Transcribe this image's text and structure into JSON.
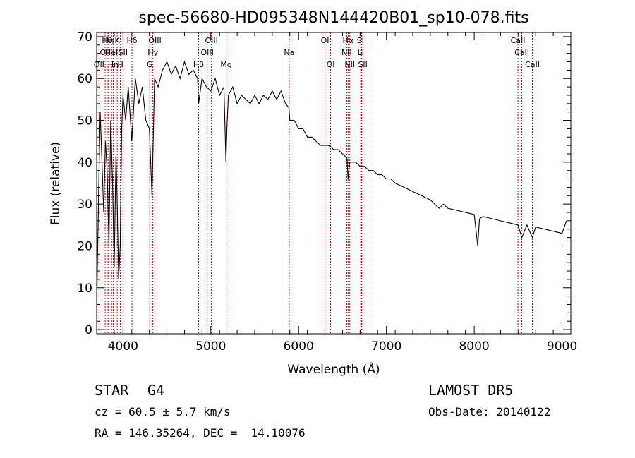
{
  "chart_data": {
    "type": "line",
    "title": "spec-56680-HD095348N144420B01_sp10-078.fits",
    "xlabel": "Wavelength (Å)",
    "ylabel": "Flux (relative)",
    "xlim": [
      3700,
      9100
    ],
    "ylim": [
      -1,
      71
    ],
    "xticks": [
      4000,
      5000,
      6000,
      7000,
      8000,
      9000
    ],
    "yticks": [
      0,
      10,
      20,
      30,
      40,
      50,
      60,
      70
    ],
    "grid": false,
    "series": [
      {
        "x": [
          3700,
          3720,
          3740,
          3760,
          3780,
          3800,
          3820,
          3840,
          3860,
          3880,
          3900,
          3920,
          3935,
          3950,
          3968,
          3985,
          4000,
          4030,
          4060,
          4100,
          4140,
          4180,
          4220,
          4260,
          4300,
          4330,
          4360,
          4400,
          4450,
          4500,
          4550,
          4600,
          4650,
          4700,
          4750,
          4800,
          4850,
          4861,
          4900,
          4950,
          5000,
          5050,
          5100,
          5150,
          5172,
          5183,
          5200,
          5250,
          5300,
          5350,
          5400,
          5450,
          5500,
          5550,
          5600,
          5650,
          5700,
          5750,
          5800,
          5850,
          5890,
          5900,
          5950,
          6000,
          6050,
          6100,
          6150,
          6200,
          6250,
          6300,
          6350,
          6400,
          6450,
          6500,
          6550,
          6563,
          6580,
          6650,
          6700,
          6750,
          6800,
          6850,
          6900,
          6950,
          7000,
          7050,
          7100,
          7200,
          7300,
          7400,
          7500,
          7600,
          7650,
          7700,
          7800,
          7900,
          8000,
          8040,
          8060,
          8100,
          8200,
          8300,
          8400,
          8498,
          8542,
          8600,
          8662,
          8700,
          8800,
          8900,
          9000,
          9050
        ],
        "y": [
          5,
          30,
          52,
          40,
          28,
          45,
          38,
          20,
          50,
          36,
          15,
          42,
          30,
          12,
          20,
          48,
          56,
          50,
          58,
          45,
          60,
          54,
          58,
          50,
          48,
          32,
          60,
          58,
          62,
          64,
          61,
          63,
          60,
          64,
          61,
          62,
          60,
          54,
          60,
          58,
          57,
          60,
          56,
          58,
          40,
          48,
          56,
          58,
          54,
          56,
          55,
          54,
          56,
          54,
          56,
          55,
          57,
          55,
          57,
          54,
          53,
          50,
          50,
          48,
          48,
          46,
          46,
          45,
          44,
          44,
          44,
          43,
          43,
          42,
          41,
          36,
          40,
          40,
          39,
          39,
          38,
          38,
          37,
          37,
          36,
          36,
          35,
          34,
          33,
          32,
          31,
          29,
          30,
          29,
          28.5,
          28,
          27.5,
          20,
          26.5,
          27,
          26.5,
          26,
          25.5,
          25,
          22,
          25,
          22,
          24.5,
          24,
          23.5,
          23,
          26
        ]
      }
    ],
    "lines": [
      {
        "wl": 3727,
        "row": 3,
        "label": "OII"
      },
      {
        "wl": 3797,
        "row": 2,
        "label": "OII"
      },
      {
        "wl": 3820,
        "row": 1,
        "label": "Hθ"
      },
      {
        "wl": 3835,
        "row": 1,
        "label": "Hη"
      },
      {
        "wl": 3870,
        "row": 2,
        "label": "HeI"
      },
      {
        "wl": 3889,
        "row": 3,
        "label": "Hη"
      },
      {
        "wl": 3934,
        "row": 1,
        "label": "K"
      },
      {
        "wl": 3970,
        "row": 3,
        "label": "H"
      },
      {
        "wl": 4000,
        "row": 2,
        "label": "SII"
      },
      {
        "wl": 4102,
        "row": 1,
        "label": "Hδ"
      },
      {
        "wl": 4304,
        "row": 3,
        "label": "G"
      },
      {
        "wl": 4340,
        "row": 2,
        "label": "Hγ"
      },
      {
        "wl": 4363,
        "row": 1,
        "label": "OIII"
      },
      {
        "wl": 4861,
        "row": 3,
        "label": "Hβ"
      },
      {
        "wl": 4959,
        "row": 2,
        "label": "OIII"
      },
      {
        "wl": 5007,
        "row": 1,
        "label": "OIII"
      },
      {
        "wl": 5175,
        "row": 3,
        "label": "Mg"
      },
      {
        "wl": 5893,
        "row": 2,
        "label": "Na"
      },
      {
        "wl": 6300,
        "row": 1,
        "label": "OI"
      },
      {
        "wl": 6364,
        "row": 3,
        "label": "OI"
      },
      {
        "wl": 6548,
        "row": 2,
        "label": "NII"
      },
      {
        "wl": 6563,
        "row": 1,
        "label": "Hα"
      },
      {
        "wl": 6583,
        "row": 3,
        "label": "NII"
      },
      {
        "wl": 6707,
        "row": 2,
        "label": "Li"
      },
      {
        "wl": 6717,
        "row": 1,
        "label": "SII"
      },
      {
        "wl": 6731,
        "row": 3,
        "label": "SII"
      },
      {
        "wl": 8498,
        "row": 1,
        "label": "CaII"
      },
      {
        "wl": 8542,
        "row": 2,
        "label": "CaII"
      },
      {
        "wl": 8662,
        "row": 3,
        "label": "CaII"
      }
    ]
  },
  "info": {
    "class": "STAR",
    "subclass": "G4",
    "release": "LAMOST DR5",
    "cz": "cz = 60.5 ± 5.7 km/s",
    "obsdate": "Obs-Date: 20140122",
    "radec": "RA = 146.35264, DEC =  14.10076"
  }
}
